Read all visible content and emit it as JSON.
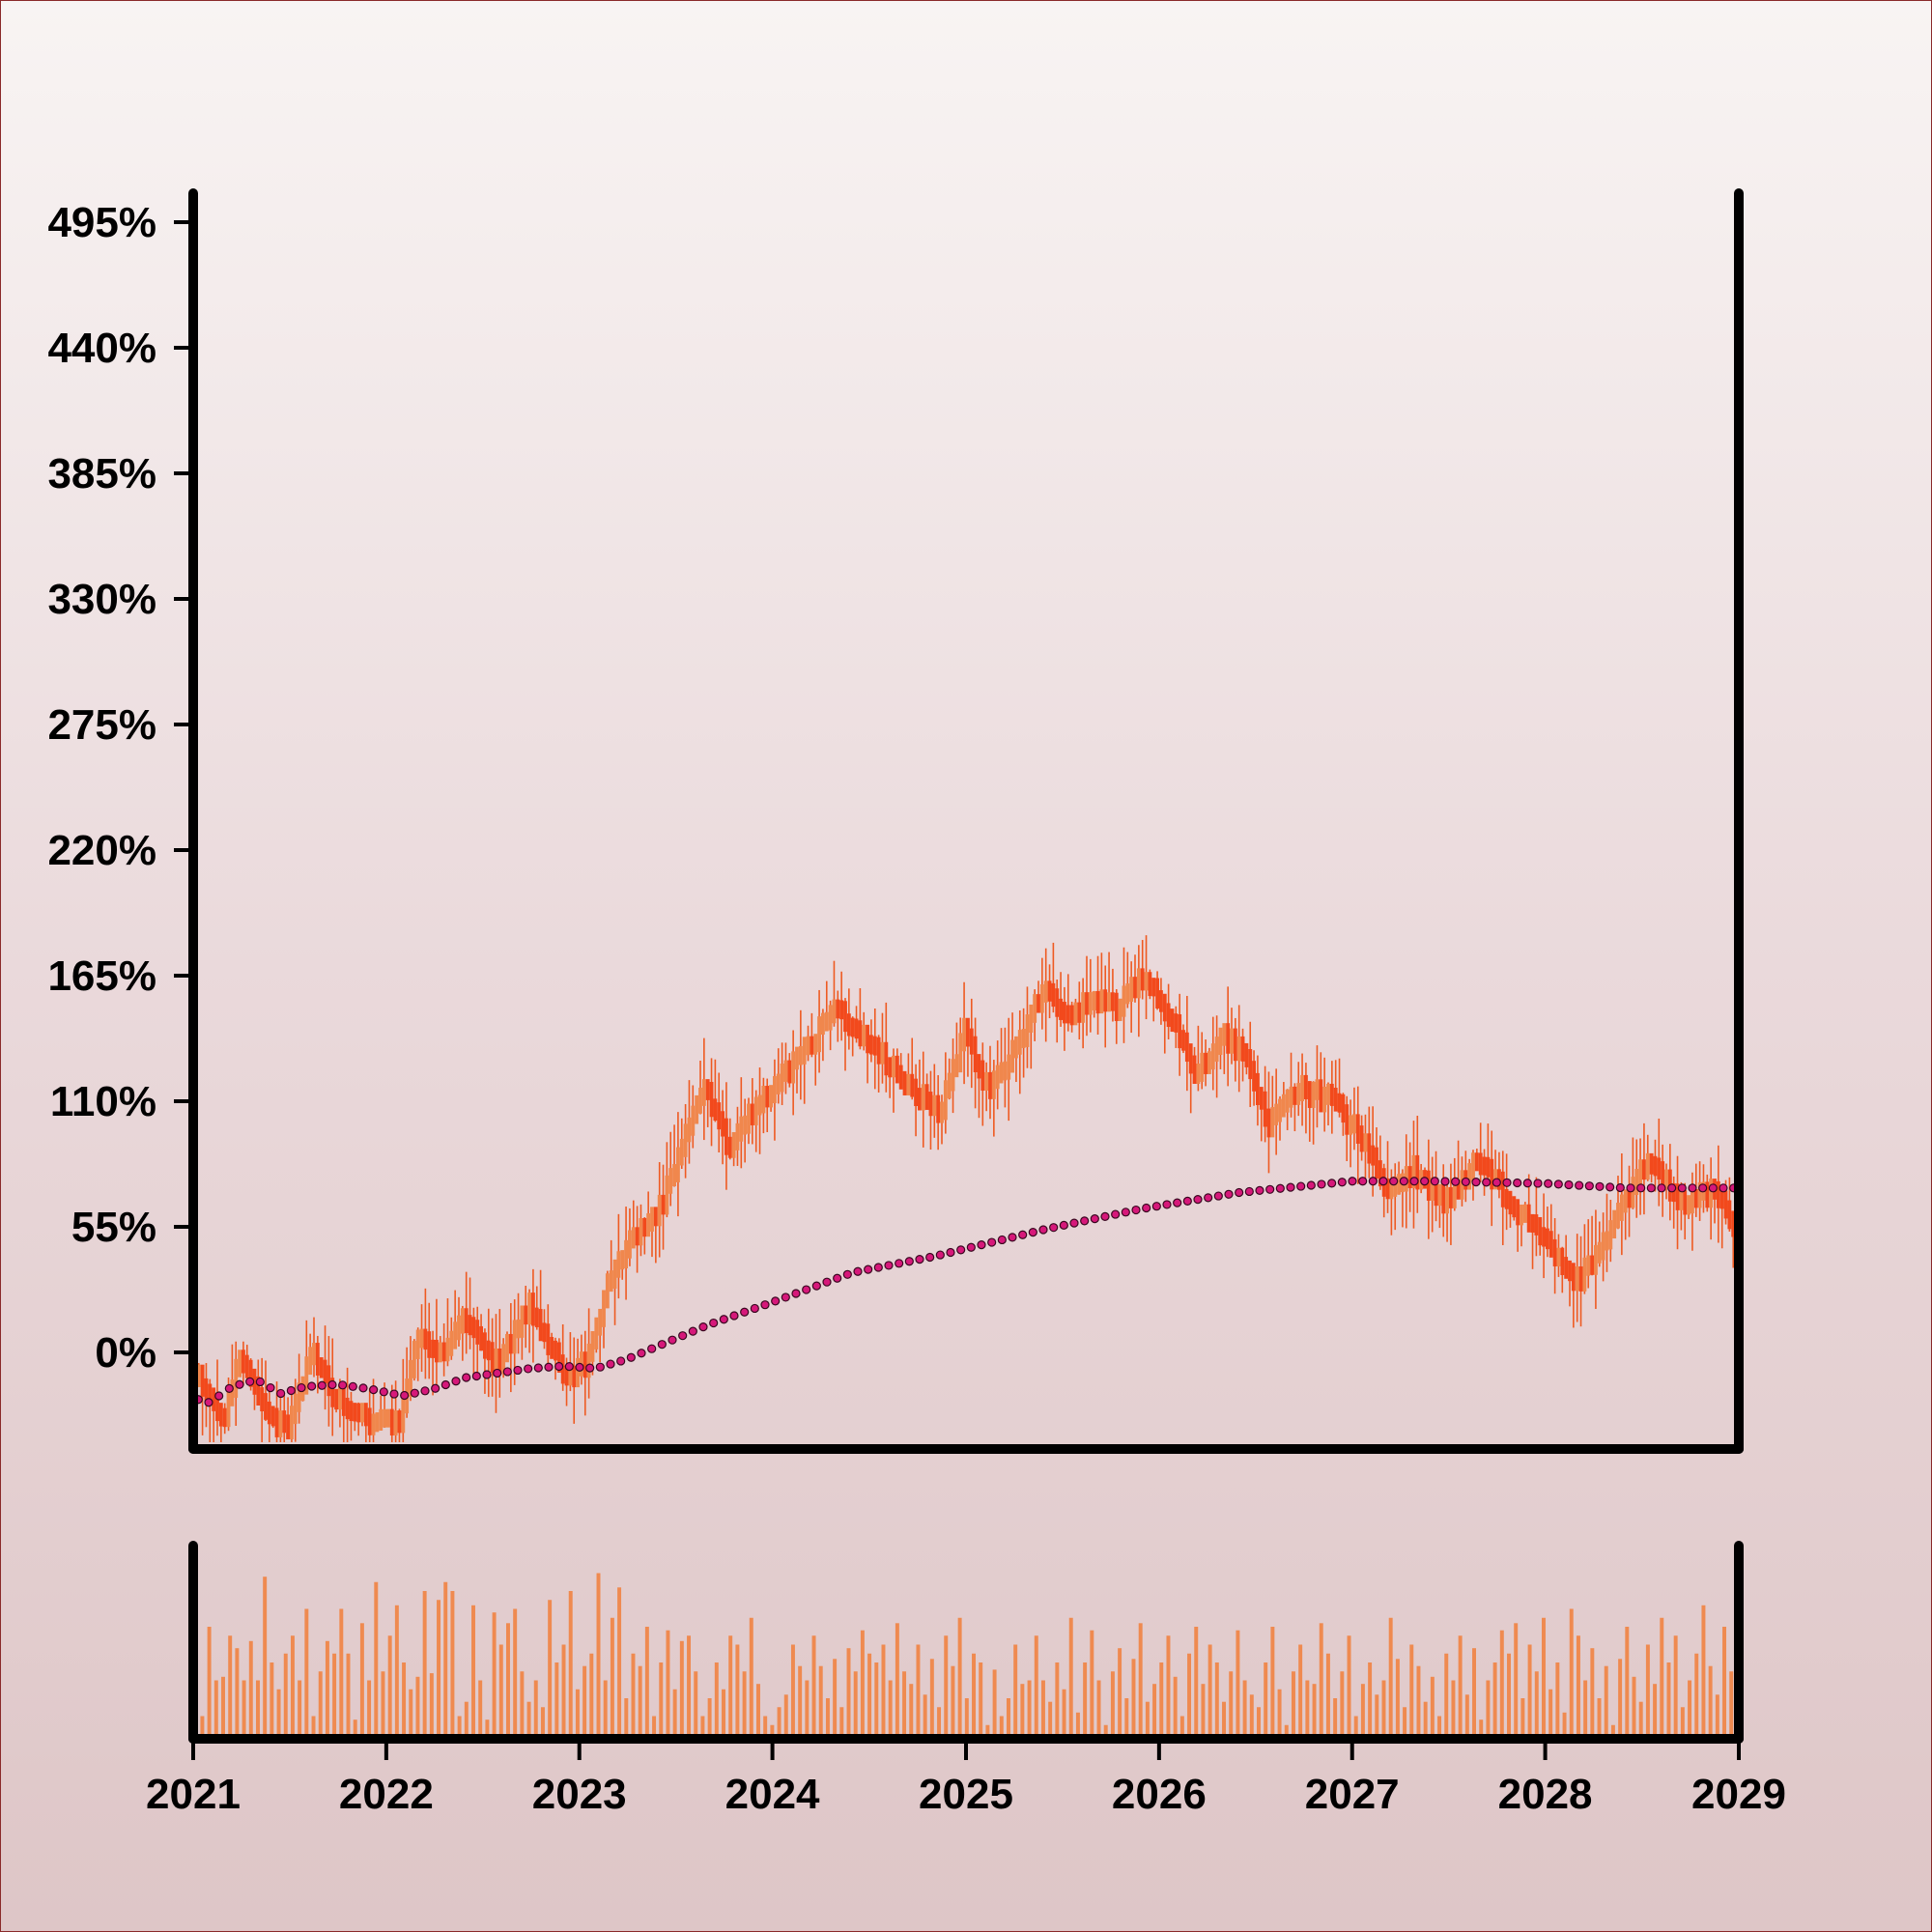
{
  "colors": {
    "candle_up": "#f0874d",
    "candle_down": "#f2491c",
    "wick": "#ee5a22",
    "moving_average": "#d6187a",
    "volume": "#ef8a50",
    "axis": "#000000"
  },
  "chart_data": {
    "type": "candlestick",
    "title": "",
    "xlabel": "",
    "ylabel": "",
    "x_range": [
      "2021-01-01",
      "2029-01-01"
    ],
    "ylim": [
      -15,
      500
    ],
    "y_ticks": [
      0,
      55,
      110,
      165,
      220,
      275,
      330,
      385,
      440,
      495
    ],
    "y_tick_labels": [
      "0%",
      "55%",
      "110%",
      "165%",
      "220%",
      "275%",
      "330%",
      "385%",
      "440%",
      "495%"
    ],
    "x_ticks": [
      "2021-01-01",
      "2022-01-01",
      "2023-01-01",
      "2024-01-01",
      "2025-01-01",
      "2026-01-01",
      "2027-01-01",
      "2028-01-01",
      "2029-01-01"
    ],
    "x_tick_labels": [
      "2021",
      "2022",
      "2023",
      "2024",
      "2025",
      "2026",
      "2027",
      "2028",
      "2029"
    ],
    "grid": false,
    "price_path": [
      {
        "date": "2021-01-01",
        "value": -5
      },
      {
        "date": "2021-03-01",
        "value": -32
      },
      {
        "date": "2021-04-01",
        "value": 0
      },
      {
        "date": "2021-05-15",
        "value": -25
      },
      {
        "date": "2021-07-01",
        "value": -35
      },
      {
        "date": "2021-08-15",
        "value": 0
      },
      {
        "date": "2021-10-01",
        "value": -20
      },
      {
        "date": "2021-12-01",
        "value": -30
      },
      {
        "date": "2022-02-01",
        "value": -30
      },
      {
        "date": "2022-03-01",
        "value": 5
      },
      {
        "date": "2022-04-15",
        "value": 0
      },
      {
        "date": "2022-06-01",
        "value": 15
      },
      {
        "date": "2022-08-01",
        "value": -5
      },
      {
        "date": "2022-10-01",
        "value": 20
      },
      {
        "date": "2022-12-15",
        "value": -12
      },
      {
        "date": "2023-01-15",
        "value": -5
      },
      {
        "date": "2023-03-01",
        "value": 30
      },
      {
        "date": "2023-04-15",
        "value": 50
      },
      {
        "date": "2023-06-01",
        "value": 60
      },
      {
        "date": "2023-08-01",
        "value": 100
      },
      {
        "date": "2023-09-01",
        "value": 115
      },
      {
        "date": "2023-10-15",
        "value": 90
      },
      {
        "date": "2023-12-15",
        "value": 110
      },
      {
        "date": "2024-03-01",
        "value": 130
      },
      {
        "date": "2024-05-01",
        "value": 150
      },
      {
        "date": "2024-07-01",
        "value": 138
      },
      {
        "date": "2024-09-01",
        "value": 120
      },
      {
        "date": "2024-11-15",
        "value": 105
      },
      {
        "date": "2025-01-01",
        "value": 140
      },
      {
        "date": "2025-02-15",
        "value": 115
      },
      {
        "date": "2025-04-15",
        "value": 135
      },
      {
        "date": "2025-06-01",
        "value": 160
      },
      {
        "date": "2025-07-15",
        "value": 145
      },
      {
        "date": "2025-09-01",
        "value": 155
      },
      {
        "date": "2025-10-15",
        "value": 150
      },
      {
        "date": "2025-12-01",
        "value": 165
      },
      {
        "date": "2026-02-01",
        "value": 145
      },
      {
        "date": "2026-03-15",
        "value": 120
      },
      {
        "date": "2026-05-01",
        "value": 140
      },
      {
        "date": "2026-06-15",
        "value": 130
      },
      {
        "date": "2026-08-01",
        "value": 100
      },
      {
        "date": "2026-10-01",
        "value": 115
      },
      {
        "date": "2026-12-01",
        "value": 110
      },
      {
        "date": "2027-02-01",
        "value": 90
      },
      {
        "date": "2027-03-15",
        "value": 70
      },
      {
        "date": "2027-05-01",
        "value": 80
      },
      {
        "date": "2027-07-01",
        "value": 65
      },
      {
        "date": "2027-09-01",
        "value": 85
      },
      {
        "date": "2027-11-01",
        "value": 65
      },
      {
        "date": "2028-01-01",
        "value": 50
      },
      {
        "date": "2028-03-01",
        "value": 30
      },
      {
        "date": "2028-05-01",
        "value": 50
      },
      {
        "date": "2028-07-15",
        "value": 85
      },
      {
        "date": "2028-09-15",
        "value": 65
      },
      {
        "date": "2028-11-15",
        "value": 70
      },
      {
        "date": "2029-01-01",
        "value": 55
      }
    ],
    "moving_average": [
      {
        "date": "2021-01-01",
        "value": -20
      },
      {
        "date": "2021-02-01",
        "value": -22
      },
      {
        "date": "2021-03-15",
        "value": -15
      },
      {
        "date": "2021-05-01",
        "value": -12
      },
      {
        "date": "2021-06-15",
        "value": -18
      },
      {
        "date": "2021-08-01",
        "value": -15
      },
      {
        "date": "2021-10-01",
        "value": -14
      },
      {
        "date": "2021-12-01",
        "value": -16
      },
      {
        "date": "2022-02-01",
        "value": -19
      },
      {
        "date": "2022-04-01",
        "value": -16
      },
      {
        "date": "2022-06-01",
        "value": -11
      },
      {
        "date": "2022-08-01",
        "value": -9
      },
      {
        "date": "2022-10-01",
        "value": -7
      },
      {
        "date": "2022-12-01",
        "value": -6
      },
      {
        "date": "2023-02-01",
        "value": -7
      },
      {
        "date": "2023-04-01",
        "value": -3
      },
      {
        "date": "2023-06-01",
        "value": 3
      },
      {
        "date": "2023-09-01",
        "value": 12
      },
      {
        "date": "2024-01-01",
        "value": 22
      },
      {
        "date": "2024-06-01",
        "value": 35
      },
      {
        "date": "2024-11-01",
        "value": 42
      },
      {
        "date": "2025-06-01",
        "value": 54
      },
      {
        "date": "2025-12-01",
        "value": 63
      },
      {
        "date": "2026-06-01",
        "value": 70
      },
      {
        "date": "2027-01-01",
        "value": 75
      },
      {
        "date": "2027-06-01",
        "value": 75
      },
      {
        "date": "2028-01-01",
        "value": 74
      },
      {
        "date": "2028-06-01",
        "value": 72
      },
      {
        "date": "2029-01-01",
        "value": 72
      }
    ],
    "volume_relative": [
      0.1,
      0.6,
      0.3,
      0.32,
      0.55,
      0.48,
      0.3,
      0.52,
      0.3,
      0.88,
      0.4,
      0.25,
      0.45,
      0.55,
      0.3,
      0.7,
      0.1,
      0.35,
      0.52,
      0.45,
      0.7,
      0.45,
      0.08,
      0.62,
      0.3,
      0.85,
      0.35,
      0.55,
      0.72,
      0.4,
      0.25,
      0.32,
      0.8,
      0.34,
      0.75,
      0.85,
      0.8,
      0.1,
      0.18,
      0.72,
      0.3,
      0.08,
      0.68,
      0.5,
      0.62,
      0.7,
      0.35,
      0.18,
      0.3,
      0.15,
      0.75,
      0.4,
      0.5,
      0.8,
      0.25,
      0.38,
      0.45,
      0.9,
      0.3,
      0.65,
      0.82,
      0.2,
      0.45,
      0.38,
      0.6,
      0.1,
      0.4,
      0.58,
      0.25,
      0.52,
      0.55,
      0.35,
      0.1,
      0.2,
      0.4,
      0.25,
      0.55,
      0.5,
      0.35,
      0.65,
      0.28,
      0.1,
      0.05,
      0.15,
      0.22,
      0.5,
      0.38,
      0.3,
      0.55,
      0.38,
      0.2,
      0.42,
      0.15,
      0.48,
      0.35,
      0.58,
      0.45,
      0.4,
      0.5,
      0.3,
      0.62,
      0.35,
      0.28,
      0.5,
      0.22,
      0.42,
      0.15,
      0.55,
      0.38,
      0.65,
      0.2,
      0.45,
      0.4,
      0.05,
      0.36,
      0.1,
      0.2,
      0.5,
      0.28,
      0.3,
      0.55,
      0.3,
      0.18,
      0.4,
      0.25,
      0.65,
      0.12,
      0.4,
      0.58,
      0.3,
      0.05,
      0.35,
      0.48,
      0.2,
      0.42,
      0.62,
      0.18,
      0.28,
      0.4,
      0.55,
      0.32,
      0.1,
      0.45,
      0.6,
      0.28,
      0.5,
      0.4,
      0.18,
      0.35,
      0.58,
      0.3,
      0.22,
      0.15,
      0.4,
      0.6,
      0.25,
      0.05,
      0.35,
      0.5,
      0.3,
      0.28,
      0.62,
      0.45,
      0.2,
      0.35,
      0.55,
      0.1,
      0.28,
      0.4,
      0.22,
      0.3,
      0.65,
      0.42,
      0.15,
      0.5,
      0.38,
      0.18,
      0.32,
      0.1,
      0.45,
      0.3,
      0.55,
      0.22,
      0.48,
      0.08,
      0.3,
      0.4,
      0.58,
      0.45,
      0.62,
      0.2,
      0.5,
      0.35,
      0.65,
      0.25,
      0.4,
      0.12,
      0.7,
      0.55,
      0.3,
      0.48,
      0.2,
      0.38,
      0.05,
      0.42,
      0.6,
      0.32,
      0.18,
      0.5,
      0.28,
      0.65,
      0.4,
      0.55,
      0.15,
      0.3,
      0.45,
      0.72,
      0.38,
      0.22,
      0.6,
      0.35
    ]
  }
}
